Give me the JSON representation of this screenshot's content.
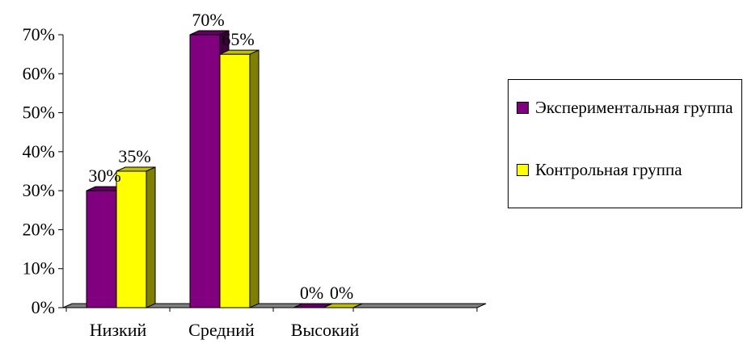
{
  "chart_data": {
    "type": "bar",
    "categories": [
      "Низкий",
      "Средний",
      "Высокий"
    ],
    "series": [
      {
        "name": "Экспериментальная группа",
        "values": [
          30,
          70,
          0
        ],
        "labels": [
          "30%",
          "70%",
          "0%"
        ]
      },
      {
        "name": "Контрольная группа",
        "values": [
          35,
          65,
          0
        ],
        "labels": [
          "35%",
          "65%",
          "0%"
        ]
      }
    ],
    "yticks": [
      "0%",
      "10%",
      "20%",
      "30%",
      "40%",
      "50%",
      "60%",
      "70%"
    ],
    "ylim": [
      0,
      70
    ],
    "grid": false,
    "legend_position": "right",
    "style": "3d-clustered-column"
  },
  "colors": {
    "series_front": [
      "#800080",
      "#ffff00"
    ],
    "series_side": [
      "#400040",
      "#808000"
    ],
    "series_top": [
      "#600060",
      "#c0c000"
    ],
    "floor": "#808080"
  }
}
